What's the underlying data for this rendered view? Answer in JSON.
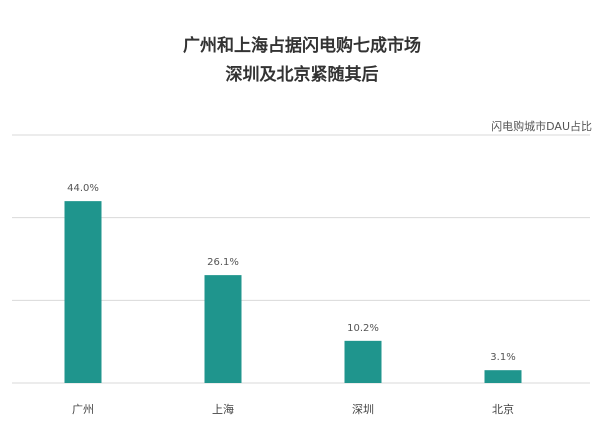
{
  "chart_data": {
    "type": "bar",
    "title": [
      "广州和上海占据闪电购七成市场",
      "深圳及北京紧随其后"
    ],
    "series_label": "闪电购城市DAU占比",
    "categories": [
      "广州",
      "上海",
      "深圳",
      "北京"
    ],
    "values": [
      44.0,
      26.1,
      10.2,
      3.1
    ],
    "value_labels": [
      "44.0%",
      "26.1%",
      "10.2%",
      "3.1%"
    ],
    "ylim": [
      0,
      60
    ],
    "gridlines": [
      0,
      20,
      40,
      60
    ],
    "grid": true,
    "bar_color": "#1f958d"
  }
}
